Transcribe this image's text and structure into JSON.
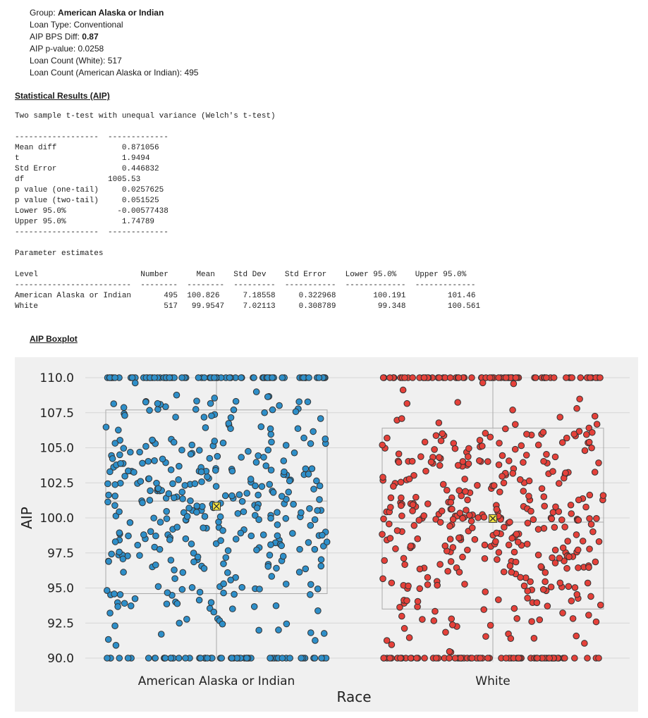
{
  "header": {
    "group_label": "Group: ",
    "group_value": "American Alaska or Indian",
    "loan_type": "Loan Type: Conventional",
    "bps_label": "AIP BPS Diff: ",
    "bps_value": "0.87",
    "pvalue": "AIP p-value: 0.0258",
    "count_white": "Loan Count (White): 517",
    "count_group": "Loan Count (American Alaska or Indian): 495"
  },
  "stats_title": "Statistical Results (AIP)",
  "stats_text": "Two sample t-test with unequal variance (Welch's t-test)\n\n------------------  -------------\nMean diff              0.871056\nt                      1.9494\nStd Error              0.446832\ndf                  1005.53\np value (one-tail)     0.0257625\np value (two-tail)     0.051525\nLower 95.0%           -0.00577438\nUpper 95.0%            1.74789\n------------------  -------------\n\nParameter estimates\n\nLevel                      Number      Mean    Std Dev    Std Error    Lower 95.0%    Upper 95.0%\n-------------------------  --------  --------  ---------  -----------  -------------  -------------\nAmerican Alaska or Indian       495  100.826     7.18558     0.322968        100.191         101.46\nWhite                           517   99.9547    7.02113     0.308789         99.348         100.561",
  "boxplot_title": "AIP Boxplot",
  "colors": {
    "plot_background": "#f0f0f0",
    "gridline": "#d6d6d6",
    "box_line": "#aaaaaa",
    "american_alaska_or_indian": "#2e8fc9",
    "white": "#e5413a",
    "mean_marker": "#f5e642"
  },
  "chart_data": {
    "type": "scatter",
    "subtype": "boxplot-with-jittered-points",
    "xlabel": "Race",
    "ylabel": "AIP",
    "ylim": [
      90,
      110
    ],
    "yticks": [
      "90.0",
      "92.5",
      "95.0",
      "97.5",
      "100.0",
      "102.5",
      "105.0",
      "107.5",
      "110.0"
    ],
    "categories": [
      "American Alaska or Indian",
      "White"
    ],
    "grid": true,
    "series": [
      {
        "name": "American Alaska or Indian",
        "count": 495,
        "mean": 100.826,
        "box": {
          "q1": 94.6,
          "median": 101.2,
          "q3": 107.7,
          "whisker_low": 90.0,
          "whisker_high": 110.0
        },
        "n_at_min": 60,
        "n_at_max": 75
      },
      {
        "name": "White",
        "count": 517,
        "mean": 99.9547,
        "box": {
          "q1": 93.5,
          "median": 99.7,
          "q3": 106.4,
          "whisker_low": 90.0,
          "whisker_high": 110.0
        },
        "n_at_min": 70,
        "n_at_max": 70
      }
    ]
  }
}
